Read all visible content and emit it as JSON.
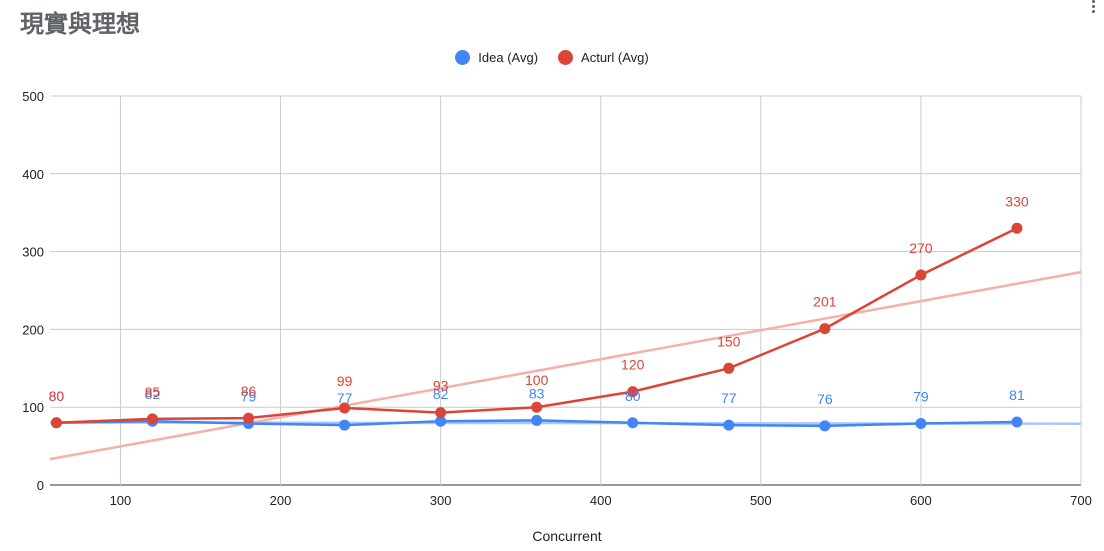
{
  "title": "現實與理想",
  "chart_data": {
    "type": "line",
    "title": "現實與理想",
    "xlabel": "Concurrent",
    "ylabel": "",
    "xlim": [
      56,
      700
    ],
    "ylim": [
      0,
      500
    ],
    "x_ticks": [
      100,
      200,
      300,
      400,
      500,
      600,
      700
    ],
    "y_ticks": [
      0,
      100,
      200,
      300,
      400,
      500
    ],
    "x": [
      60,
      120,
      180,
      240,
      300,
      360,
      420,
      480,
      540,
      600,
      660
    ],
    "grid": true,
    "legend_position": "top",
    "series": [
      {
        "name": "Idea (Avg)",
        "color": "#4285f4",
        "values": [
          80,
          82,
          79,
          77,
          82,
          83,
          80,
          77,
          76,
          79,
          81
        ]
      },
      {
        "name": "Acturl (Avg)",
        "color": "#db4437",
        "values": [
          80,
          85,
          86,
          99,
          93,
          100,
          120,
          150,
          201,
          270,
          330
        ]
      }
    ],
    "trendlines": [
      {
        "series": "Idea (Avg)",
        "color": "#a8c7fa",
        "type": "linear"
      },
      {
        "series": "Acturl (Avg)",
        "color": "#f4b0a9",
        "type": "linear"
      }
    ]
  }
}
